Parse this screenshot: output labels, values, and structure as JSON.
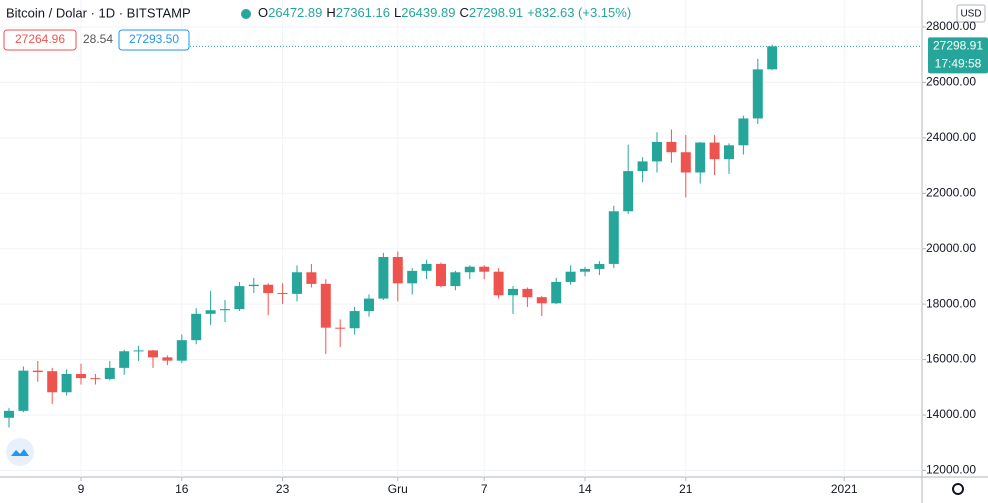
{
  "chart_data": {
    "type": "candlestick",
    "title": "Bitcoin / Dolar · 1D · BITSTAMP",
    "change": "+832.63 (+3.15%)",
    "sell_price": "27264.96",
    "spread": "28.54",
    "buy_price": "27293.50",
    "currency": "USD",
    "countdown": "17:49:58",
    "ohlc_keys": [
      "O",
      "H",
      "L",
      "C"
    ],
    "up_color": "#26a69a",
    "down_color": "#ef5350",
    "open": [
      13900,
      14150,
      15600,
      15580,
      14820,
      15480,
      15330,
      15300,
      15700,
      16300,
      16330,
      16080,
      15960,
      16700,
      17650,
      17780,
      17820,
      18650,
      18700,
      18400,
      18370,
      19150,
      18730,
      17150,
      17130,
      17750,
      18200,
      19700,
      18750,
      19200,
      19450,
      18650,
      19150,
      19350,
      19170,
      18320,
      18550,
      18250,
      18030,
      18800,
      19170,
      19270,
      19450,
      21350,
      22800,
      23150,
      23850,
      23480,
      22750,
      23830,
      23230,
      23730,
      24700,
      26472.89
    ],
    "high": [
      14250,
      15750,
      15950,
      15700,
      15650,
      15850,
      15480,
      15950,
      16350,
      16500,
      16350,
      16150,
      16900,
      17850,
      18480,
      18150,
      18800,
      18950,
      18750,
      18750,
      19400,
      19450,
      18900,
      17450,
      17900,
      18350,
      19850,
      19900,
      19300,
      19600,
      19500,
      19200,
      19400,
      19400,
      19300,
      18650,
      18600,
      18300,
      18950,
      19400,
      19350,
      19550,
      21550,
      23750,
      23300,
      24200,
      24300,
      24100,
      23850,
      24100,
      23800,
      24800,
      26850,
      27361.16
    ],
    "low": [
      13550,
      14100,
      15200,
      14400,
      14700,
      15100,
      15100,
      15250,
      15450,
      15950,
      15700,
      15800,
      15870,
      16550,
      17250,
      17350,
      17750,
      18400,
      17600,
      18000,
      18100,
      18600,
      16200,
      16450,
      16900,
      17550,
      18150,
      18100,
      18350,
      18900,
      18600,
      18500,
      18900,
      18900,
      18200,
      17650,
      17900,
      17570,
      18000,
      18700,
      19000,
      19050,
      19300,
      21250,
      22400,
      22750,
      23100,
      21850,
      22350,
      22650,
      22700,
      23400,
      24500,
      26439.89
    ],
    "close": [
      14150,
      15600,
      15550,
      14820,
      15480,
      15330,
      15300,
      15700,
      16300,
      16330,
      16080,
      15960,
      16700,
      17650,
      17780,
      17820,
      18650,
      18700,
      18400,
      18370,
      19150,
      18730,
      17150,
      17130,
      17750,
      18200,
      19700,
      18750,
      19200,
      19450,
      18650,
      19150,
      19350,
      19170,
      18320,
      18550,
      18250,
      18030,
      18800,
      19170,
      19270,
      19450,
      21350,
      22800,
      23150,
      23850,
      23480,
      22750,
      23830,
      23230,
      23730,
      24700,
      26470,
      27298.91
    ],
    "xticks": [
      {
        "value": 5,
        "label": "9"
      },
      {
        "value": 12,
        "label": "16"
      },
      {
        "value": 19,
        "label": "23"
      },
      {
        "value": 27,
        "label": "Gru"
      },
      {
        "value": 33,
        "label": "7"
      },
      {
        "value": 40,
        "label": "14"
      },
      {
        "value": 47,
        "label": "21"
      },
      {
        "value": 58,
        "label": "2021"
      }
    ],
    "ylim": [
      11900,
      28150
    ],
    "yticks": [
      {
        "value": 12000,
        "label": "12000.00"
      },
      {
        "value": 14000,
        "label": "14000.00"
      },
      {
        "value": 16000,
        "label": "16000.00"
      },
      {
        "value": 18000,
        "label": "18000.00"
      },
      {
        "value": 20000,
        "label": "20000.00"
      },
      {
        "value": 22000,
        "label": "22000.00"
      },
      {
        "value": 24000,
        "label": "24000.00"
      },
      {
        "value": 26000,
        "label": "26000.00"
      },
      {
        "value": 28000,
        "label": "28000.00"
      }
    ],
    "grid": true
  }
}
